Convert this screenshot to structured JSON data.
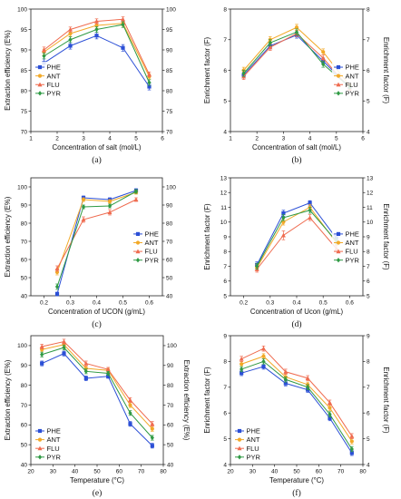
{
  "colors": {
    "PHE": "#2b4fd6",
    "ANT": "#f2a928",
    "FLU": "#ef6b4f",
    "PYR": "#2f9a44"
  },
  "chart_data": [
    {
      "id": "a",
      "panel_label": "(a)",
      "type": "line",
      "xlabel": "Concentration of salt (mol/L)",
      "ylabel": "Extraction efficiency (E%)",
      "y2label": "",
      "xlim": [
        1,
        6
      ],
      "ylim": [
        70,
        100
      ],
      "xticks": [
        "1",
        "2",
        "3",
        "4",
        "5",
        "6"
      ],
      "yticks": [
        "70",
        "75",
        "80",
        "85",
        "90",
        "95",
        "100"
      ],
      "legend": "center-left",
      "x": [
        1.5,
        2.5,
        3.5,
        4.5,
        5.5
      ],
      "series": [
        {
          "name": "PHE",
          "values": [
            86.8,
            91.0,
            93.5,
            90.5,
            81.0
          ],
          "errors": [
            1.0,
            0.8,
            0.8,
            0.8,
            0.8
          ]
        },
        {
          "name": "ANT",
          "values": [
            89.5,
            94.0,
            96.0,
            96.5,
            83.5
          ],
          "errors": [
            0.7,
            0.7,
            0.7,
            0.7,
            0.6
          ]
        },
        {
          "name": "FLU",
          "values": [
            90.0,
            95.0,
            97.0,
            97.5,
            84.0
          ],
          "errors": [
            0.7,
            0.6,
            0.6,
            0.6,
            0.6
          ]
        },
        {
          "name": "PYR",
          "values": [
            88.5,
            92.5,
            95.0,
            96.2,
            82.0
          ],
          "errors": [
            0.7,
            0.7,
            0.7,
            0.7,
            0.7
          ]
        }
      ]
    },
    {
      "id": "b",
      "panel_label": "(b)",
      "type": "line",
      "xlabel": "Concentration of salt (mol/L)",
      "ylabel": "Enrichment factor (F)",
      "y2label": "Enrichment factor (F)",
      "xlim": [
        1,
        6
      ],
      "ylim": [
        4,
        8
      ],
      "xticks": [
        "1",
        "2",
        "3",
        "4",
        "5",
        "6"
      ],
      "yticks": [
        "4",
        "5",
        "6",
        "7",
        "8"
      ],
      "legend": "center-right",
      "x": [
        1.5,
        2.5,
        3.5,
        4.5,
        5.5
      ],
      "series": [
        {
          "name": "PHE",
          "values": [
            5.85,
            6.8,
            7.15,
            6.3,
            5.45
          ],
          "errors": [
            0.1,
            0.1,
            0.1,
            0.1,
            0.05
          ]
        },
        {
          "name": "ANT",
          "values": [
            6.0,
            7.0,
            7.4,
            6.6,
            5.5
          ],
          "errors": [
            0.1,
            0.1,
            0.1,
            0.1,
            0.05
          ]
        },
        {
          "name": "FLU",
          "values": [
            5.8,
            6.75,
            7.2,
            6.4,
            5.4
          ],
          "errors": [
            0.1,
            0.1,
            0.1,
            0.1,
            0.05
          ]
        },
        {
          "name": "PYR",
          "values": [
            5.9,
            6.9,
            7.25,
            6.2,
            5.45
          ],
          "errors": [
            0.1,
            0.1,
            0.1,
            0.1,
            0.05
          ]
        }
      ]
    },
    {
      "id": "c",
      "panel_label": "(c)",
      "type": "line",
      "xlabel": "Concentration of UCON (g/mL)",
      "ylabel": "Extraction efficiency (E%)",
      "y2label": "",
      "xlim": [
        0.15,
        0.65
      ],
      "ylim": [
        40,
        105
      ],
      "xticks": [
        "0.2",
        "0.3",
        "0.4",
        "0.5",
        "0.6"
      ],
      "yticks": [
        "40",
        "50",
        "60",
        "70",
        "80",
        "90",
        "100"
      ],
      "legend": "center-right",
      "x": [
        0.25,
        0.35,
        0.45,
        0.55
      ],
      "series": [
        {
          "name": "PHE",
          "values": [
            41.0,
            94.0,
            93.0,
            98.0
          ],
          "errors": [
            1.0,
            1.0,
            1.0,
            1.0
          ]
        },
        {
          "name": "ANT",
          "values": [
            53.0,
            93.0,
            92.0,
            97.0
          ],
          "errors": [
            1.5,
            1.0,
            1.0,
            1.0
          ]
        },
        {
          "name": "FLU",
          "values": [
            55.0,
            82.0,
            86.0,
            93.0
          ],
          "errors": [
            1.5,
            1.5,
            1.5,
            1.0
          ]
        },
        {
          "name": "PYR",
          "values": [
            45.0,
            89.0,
            89.5,
            97.5
          ],
          "errors": [
            1.5,
            1.0,
            1.0,
            1.0
          ]
        }
      ]
    },
    {
      "id": "d",
      "panel_label": "(d)",
      "type": "line",
      "xlabel": "Concentration of Ucon (g/mL)",
      "ylabel": "Enrichment factor (F)",
      "y2label": "Enrichment factor (F)",
      "xlim": [
        0.15,
        0.65
      ],
      "ylim": [
        5,
        13
      ],
      "xticks": [
        "0.2",
        "0.3",
        "0.4",
        "0.5",
        "0.6"
      ],
      "yticks": [
        "5",
        "6",
        "7",
        "8",
        "9",
        "10",
        "11",
        "12",
        "13"
      ],
      "legend": "center-right",
      "x": [
        0.25,
        0.35,
        0.45,
        0.55
      ],
      "series": [
        {
          "name": "PHE",
          "values": [
            7.1,
            10.6,
            11.3,
            8.9
          ],
          "errors": [
            0.2,
            0.2,
            0.15,
            0.2
          ]
        },
        {
          "name": "ANT",
          "values": [
            6.9,
            10.0,
            11.0,
            8.6
          ],
          "errors": [
            0.2,
            0.2,
            0.2,
            0.2
          ]
        },
        {
          "name": "FLU",
          "values": [
            6.8,
            9.1,
            10.3,
            8.2
          ],
          "errors": [
            0.2,
            0.3,
            0.2,
            0.2
          ]
        },
        {
          "name": "PYR",
          "values": [
            7.0,
            10.3,
            10.8,
            8.7
          ],
          "errors": [
            0.2,
            0.2,
            0.2,
            0.2
          ]
        }
      ]
    },
    {
      "id": "e",
      "panel_label": "(e)",
      "type": "line",
      "xlabel": "Temperature (°C)",
      "ylabel": "Extraction efficiency (E%)",
      "y2label": "Extraction efficiency (E%)",
      "xlim": [
        20,
        80
      ],
      "ylim": [
        40,
        105
      ],
      "xticks": [
        "20",
        "30",
        "40",
        "50",
        "60",
        "70",
        "80"
      ],
      "yticks": [
        "40",
        "50",
        "60",
        "70",
        "80",
        "90",
        "100"
      ],
      "legend": "lower-left",
      "x": [
        25,
        35,
        45,
        55,
        65,
        75
      ],
      "series": [
        {
          "name": "PHE",
          "values": [
            91.0,
            96.0,
            83.5,
            84.5,
            60.5,
            49.5
          ],
          "errors": [
            1.2,
            1.2,
            1.2,
            1.0,
            1.2,
            1.2
          ]
        },
        {
          "name": "ANT",
          "values": [
            98.0,
            100.5,
            88.5,
            87.5,
            70.0,
            58.0
          ],
          "errors": [
            1.2,
            1.2,
            1.2,
            1.0,
            1.2,
            1.2
          ]
        },
        {
          "name": "FLU",
          "values": [
            99.5,
            102.0,
            91.0,
            88.0,
            72.5,
            60.5
          ],
          "errors": [
            1.2,
            1.2,
            1.2,
            1.0,
            1.2,
            1.2
          ]
        },
        {
          "name": "PYR",
          "values": [
            95.5,
            99.0,
            87.0,
            86.0,
            66.0,
            53.5
          ],
          "errors": [
            1.2,
            1.2,
            1.2,
            1.0,
            1.2,
            1.2
          ]
        }
      ]
    },
    {
      "id": "f",
      "panel_label": "(f)",
      "type": "line",
      "xlabel": "Temperature (°C)",
      "ylabel": "Enrichment factor (F)",
      "y2label": "Enrichment factor (F)",
      "xlim": [
        20,
        80
      ],
      "ylim": [
        4,
        9
      ],
      "xticks": [
        "20",
        "30",
        "40",
        "50",
        "60",
        "70",
        "80"
      ],
      "yticks": [
        "4",
        "5",
        "6",
        "7",
        "8",
        "9"
      ],
      "legend": "lower-left",
      "x": [
        25,
        35,
        45,
        55,
        65,
        75
      ],
      "series": [
        {
          "name": "PHE",
          "values": [
            7.55,
            7.8,
            7.15,
            6.9,
            5.8,
            4.45
          ],
          "errors": [
            0.1,
            0.1,
            0.1,
            0.1,
            0.1,
            0.1
          ]
        },
        {
          "name": "ANT",
          "values": [
            7.9,
            8.2,
            7.4,
            7.1,
            6.2,
            4.9
          ],
          "errors": [
            0.1,
            0.1,
            0.1,
            0.1,
            0.1,
            0.1
          ]
        },
        {
          "name": "FLU",
          "values": [
            8.1,
            8.5,
            7.6,
            7.35,
            6.4,
            5.1
          ],
          "errors": [
            0.1,
            0.1,
            0.1,
            0.1,
            0.1,
            0.1
          ]
        },
        {
          "name": "PYR",
          "values": [
            7.7,
            8.0,
            7.3,
            7.0,
            5.95,
            4.6
          ],
          "errors": [
            0.1,
            0.1,
            0.1,
            0.1,
            0.1,
            0.1
          ]
        }
      ]
    }
  ]
}
